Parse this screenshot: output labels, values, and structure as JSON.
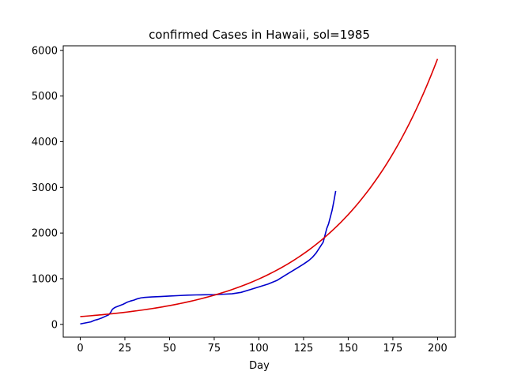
{
  "chart_data": {
    "type": "line",
    "title": "confirmed Cases in Hawaii, sol=1985",
    "xlabel": "Day",
    "ylabel": "",
    "xlim": [
      -9.5,
      210
    ],
    "ylim": [
      -280,
      6100
    ],
    "x_ticks": [
      0,
      25,
      50,
      75,
      100,
      125,
      150,
      175,
      200
    ],
    "y_ticks": [
      0,
      1000,
      2000,
      3000,
      4000,
      5000,
      6000
    ],
    "grid": false,
    "legend": "none",
    "series": [
      {
        "color": "#0000cc",
        "points": [
          [
            0,
            10
          ],
          [
            2,
            25
          ],
          [
            4,
            40
          ],
          [
            6,
            55
          ],
          [
            8,
            90
          ],
          [
            10,
            110
          ],
          [
            12,
            140
          ],
          [
            14,
            175
          ],
          [
            16,
            210
          ],
          [
            17,
            260
          ],
          [
            18,
            330
          ],
          [
            19,
            360
          ],
          [
            20,
            380
          ],
          [
            22,
            410
          ],
          [
            24,
            440
          ],
          [
            26,
            480
          ],
          [
            28,
            510
          ],
          [
            30,
            530
          ],
          [
            32,
            560
          ],
          [
            34,
            580
          ],
          [
            36,
            590
          ],
          [
            40,
            600
          ],
          [
            45,
            610
          ],
          [
            50,
            620
          ],
          [
            55,
            630
          ],
          [
            60,
            640
          ],
          [
            65,
            645
          ],
          [
            70,
            648
          ],
          [
            75,
            650
          ],
          [
            80,
            660
          ],
          [
            85,
            670
          ],
          [
            90,
            700
          ],
          [
            95,
            760
          ],
          [
            100,
            820
          ],
          [
            105,
            880
          ],
          [
            110,
            960
          ],
          [
            115,
            1080
          ],
          [
            120,
            1200
          ],
          [
            125,
            1320
          ],
          [
            128,
            1400
          ],
          [
            130,
            1470
          ],
          [
            132,
            1560
          ],
          [
            134,
            1680
          ],
          [
            136,
            1800
          ],
          [
            137,
            1950
          ],
          [
            138,
            2100
          ],
          [
            139,
            2200
          ],
          [
            140,
            2350
          ],
          [
            141,
            2500
          ],
          [
            142,
            2700
          ],
          [
            143,
            2920
          ]
        ]
      },
      {
        "color": "#dd0000",
        "curve": {
          "kind": "exponential",
          "a": 170,
          "k": 0.01766,
          "x_start": 0,
          "x_end": 200
        }
      }
    ]
  }
}
